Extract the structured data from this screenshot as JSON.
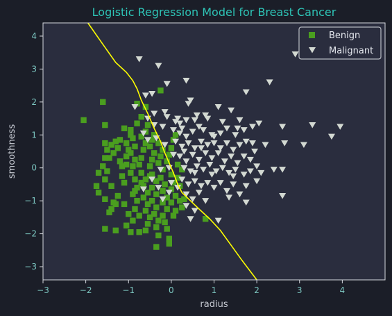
{
  "colors": {
    "figure_bg": "#1b1e28",
    "plot_bg": "#2a2d3e",
    "spine": "#d7dae0",
    "tick_label": "#7cc6c0",
    "axis_label": "#c8ccd4",
    "title": "#2ec4b6",
    "benign": "#4a9e1f",
    "malignant": "#d3d9d2",
    "boundary": "#ffff00",
    "legend_bg": "#2a2d3e",
    "legend_border": "#d7dae0",
    "legend_text": "#e6e9ef"
  },
  "chart_data": {
    "type": "scatter",
    "title": "Logistic Regression Model for Breast Cancer",
    "xlabel": "radius",
    "ylabel": "smoothness",
    "xlim": [
      -3,
      5
    ],
    "ylim": [
      -3.4,
      4.4
    ],
    "xticks": [
      -3,
      -2,
      -1,
      0,
      1,
      2,
      3,
      4
    ],
    "yticks": [
      -3,
      -2,
      -1,
      0,
      1,
      2,
      3,
      4
    ],
    "grid": false,
    "legend": {
      "position": "top-right",
      "entries": [
        "Benign",
        "Malignant"
      ]
    },
    "series": [
      {
        "name": "Benign",
        "marker": "square",
        "points": [
          [
            -2.05,
            1.45
          ],
          [
            -1.6,
            2.0
          ],
          [
            -1.55,
            1.3
          ],
          [
            -1.55,
            0.75
          ],
          [
            -1.4,
            0.7
          ],
          [
            -1.5,
            0.55
          ],
          [
            -1.3,
            0.8
          ],
          [
            -1.2,
            0.85
          ],
          [
            -1.25,
            0.6
          ],
          [
            -1.35,
            0.45
          ],
          [
            -1.55,
            0.3
          ],
          [
            -1.45,
            0.3
          ],
          [
            -1.6,
            0.05
          ],
          [
            -1.7,
            -0.15
          ],
          [
            -1.5,
            -0.1
          ],
          [
            -1.55,
            -0.35
          ],
          [
            -1.4,
            -0.55
          ],
          [
            -1.7,
            -0.75
          ],
          [
            -1.55,
            -0.95
          ],
          [
            -1.35,
            -1.05
          ],
          [
            -1.4,
            -1.25
          ],
          [
            -1.45,
            -1.35
          ],
          [
            -1.55,
            -1.85
          ],
          [
            -1.3,
            -1.9
          ],
          [
            -1.2,
            0.2
          ],
          [
            -1.15,
            -0.25
          ],
          [
            -1.1,
            -0.45
          ],
          [
            -1.25,
            -0.85
          ],
          [
            -1.1,
            -1.1
          ],
          [
            -1.15,
            0.05
          ],
          [
            -1.05,
            0.35
          ],
          [
            -1.0,
            0.55
          ],
          [
            -1.05,
            0.75
          ],
          [
            -0.95,
            1.0
          ],
          [
            -1.1,
            1.2
          ],
          [
            -0.95,
            1.15
          ],
          [
            -0.9,
            0.9
          ],
          [
            -0.85,
            0.65
          ],
          [
            -0.95,
            0.45
          ],
          [
            -0.85,
            0.25
          ],
          [
            -0.9,
            0.05
          ],
          [
            -0.95,
            -0.15
          ],
          [
            -0.85,
            -0.35
          ],
          [
            -0.8,
            -0.6
          ],
          [
            -0.9,
            -0.8
          ],
          [
            -0.8,
            -1.0
          ],
          [
            -0.85,
            -1.25
          ],
          [
            -0.75,
            -1.45
          ],
          [
            -0.9,
            -1.6
          ],
          [
            -1.05,
            -1.75
          ],
          [
            -0.75,
            -1.95
          ],
          [
            -0.8,
            1.35
          ],
          [
            -0.7,
            1.55
          ],
          [
            -0.8,
            1.95
          ],
          [
            -0.6,
            1.85
          ],
          [
            -0.75,
            0.1
          ],
          [
            -0.7,
            0.3
          ],
          [
            -0.65,
            0.55
          ],
          [
            -0.6,
            0.75
          ],
          [
            -0.7,
            0.95
          ],
          [
            -0.6,
            1.1
          ],
          [
            -0.55,
            1.3
          ],
          [
            -0.7,
            -0.15
          ],
          [
            -0.6,
            -0.35
          ],
          [
            -0.65,
            -0.55
          ],
          [
            -0.55,
            -0.75
          ],
          [
            -0.65,
            -0.9
          ],
          [
            -0.55,
            -1.1
          ],
          [
            -0.6,
            -1.3
          ],
          [
            -0.5,
            -1.5
          ],
          [
            -0.55,
            -1.7
          ],
          [
            -0.6,
            -1.9
          ],
          [
            -0.5,
            0.05
          ],
          [
            -0.45,
            0.25
          ],
          [
            -0.4,
            0.45
          ],
          [
            -0.5,
            0.65
          ],
          [
            -0.45,
            0.85
          ],
          [
            -0.4,
            1.0
          ],
          [
            -0.45,
            -0.2
          ],
          [
            -0.35,
            -0.4
          ],
          [
            -0.45,
            -0.6
          ],
          [
            -0.35,
            -0.8
          ],
          [
            -0.45,
            -1.0
          ],
          [
            -0.35,
            -1.2
          ],
          [
            -0.4,
            -1.4
          ],
          [
            -0.3,
            -1.6
          ],
          [
            -0.35,
            -1.8
          ],
          [
            -0.3,
            -2.05
          ],
          [
            -0.35,
            -2.4
          ],
          [
            -0.25,
            2.35
          ],
          [
            -0.3,
            0.15
          ],
          [
            -0.25,
            0.35
          ],
          [
            -0.2,
            0.55
          ],
          [
            -0.3,
            0.75
          ],
          [
            -0.2,
            -0.05
          ],
          [
            -0.25,
            -0.3
          ],
          [
            -0.15,
            -0.5
          ],
          [
            -0.2,
            -0.7
          ],
          [
            -0.1,
            -0.9
          ],
          [
            -0.2,
            -1.05
          ],
          [
            -0.1,
            -1.25
          ],
          [
            -0.2,
            -1.45
          ],
          [
            -0.15,
            -1.65
          ],
          [
            -0.1,
            -1.85
          ],
          [
            -0.05,
            -2.15
          ],
          [
            -0.05,
            -2.3
          ],
          [
            -0.1,
            0.2
          ],
          [
            -0.05,
            0.4
          ],
          [
            0.0,
            0.6
          ],
          [
            0.05,
            0.85
          ],
          [
            0.1,
            1.0
          ],
          [
            0.0,
            -0.2
          ],
          [
            0.05,
            -0.45
          ],
          [
            0.0,
            -0.65
          ],
          [
            0.1,
            -0.85
          ],
          [
            0.0,
            -1.05
          ],
          [
            0.1,
            -1.3
          ],
          [
            0.05,
            -1.45
          ],
          [
            0.15,
            -0.3
          ],
          [
            0.2,
            -0.55
          ],
          [
            0.2,
            -1.0
          ],
          [
            0.25,
            -1.2
          ],
          [
            0.3,
            -0.95
          ],
          [
            0.15,
            0.1
          ],
          [
            0.25,
            -0.05
          ],
          [
            -1.3,
            -1.1
          ],
          [
            -1.75,
            -0.55
          ],
          [
            -1.0,
            -1.4
          ],
          [
            -0.95,
            -1.95
          ],
          [
            0.8,
            -1.55
          ],
          [
            -0.7,
            -0.45
          ],
          [
            -0.5,
            -0.25
          ],
          [
            -1.05,
            0.1
          ],
          [
            -0.85,
            -0.7
          ]
        ]
      },
      {
        "name": "Malignant",
        "marker": "triangle-down",
        "points": [
          [
            -0.75,
            3.3
          ],
          [
            -0.3,
            3.1
          ],
          [
            -0.1,
            2.55
          ],
          [
            0.35,
            2.65
          ],
          [
            0.45,
            2.05
          ],
          [
            0.4,
            1.95
          ],
          [
            -0.45,
            2.25
          ],
          [
            -0.6,
            2.2
          ],
          [
            -0.85,
            1.85
          ],
          [
            -0.4,
            1.65
          ],
          [
            -0.1,
            1.55
          ],
          [
            -0.15,
            1.7
          ],
          [
            0.15,
            1.5
          ],
          [
            0.2,
            1.35
          ],
          [
            0.35,
            1.45
          ],
          [
            0.55,
            1.45
          ],
          [
            0.8,
            1.6
          ],
          [
            0.85,
            1.5
          ],
          [
            1.1,
            1.85
          ],
          [
            1.4,
            1.75
          ],
          [
            1.6,
            1.45
          ],
          [
            1.75,
            2.3
          ],
          [
            2.3,
            2.6
          ],
          [
            2.9,
            3.45
          ],
          [
            0.05,
            1.15
          ],
          [
            0.2,
            1.05
          ],
          [
            0.35,
            0.95
          ],
          [
            0.5,
            1.1
          ],
          [
            0.65,
            1.25
          ],
          [
            0.75,
            1.15
          ],
          [
            0.95,
            1.0
          ],
          [
            1.15,
            1.05
          ],
          [
            1.3,
            1.2
          ],
          [
            1.5,
            1.0
          ],
          [
            1.7,
            1.15
          ],
          [
            1.9,
            1.25
          ],
          [
            2.05,
            1.35
          ],
          [
            2.6,
            1.25
          ],
          [
            3.3,
            1.3
          ],
          [
            3.95,
            1.25
          ],
          [
            0.1,
            0.8
          ],
          [
            0.25,
            0.65
          ],
          [
            0.4,
            0.75
          ],
          [
            0.55,
            0.6
          ],
          [
            0.7,
            0.8
          ],
          [
            0.85,
            0.7
          ],
          [
            1.0,
            0.75
          ],
          [
            1.15,
            0.6
          ],
          [
            1.3,
            0.75
          ],
          [
            1.45,
            0.55
          ],
          [
            1.6,
            0.7
          ],
          [
            1.75,
            0.8
          ],
          [
            1.95,
            0.5
          ],
          [
            2.2,
            0.7
          ],
          [
            2.65,
            0.75
          ],
          [
            3.1,
            0.7
          ],
          [
            3.75,
            0.95
          ],
          [
            0.2,
            0.35
          ],
          [
            0.35,
            0.2
          ],
          [
            0.5,
            0.4
          ],
          [
            0.65,
            0.25
          ],
          [
            0.8,
            0.45
          ],
          [
            0.95,
            0.3
          ],
          [
            1.1,
            0.45
          ],
          [
            1.25,
            0.2
          ],
          [
            1.4,
            0.35
          ],
          [
            1.55,
            0.15
          ],
          [
            1.7,
            0.35
          ],
          [
            1.85,
            0.25
          ],
          [
            2.0,
            0.05
          ],
          [
            0.3,
            0.0
          ],
          [
            0.45,
            -0.1
          ],
          [
            0.6,
            0.05
          ],
          [
            0.75,
            -0.05
          ],
          [
            0.9,
            0.1
          ],
          [
            1.05,
            -0.1
          ],
          [
            1.2,
            0.0
          ],
          [
            1.35,
            -0.15
          ],
          [
            1.5,
            -0.05
          ],
          [
            1.7,
            -0.2
          ],
          [
            1.85,
            -0.1
          ],
          [
            2.1,
            -0.15
          ],
          [
            2.6,
            -0.05
          ],
          [
            0.25,
            -0.35
          ],
          [
            0.4,
            -0.5
          ],
          [
            0.55,
            -0.4
          ],
          [
            0.7,
            -0.55
          ],
          [
            0.85,
            -0.45
          ],
          [
            1.0,
            -0.6
          ],
          [
            1.15,
            -0.45
          ],
          [
            1.3,
            -0.7
          ],
          [
            1.45,
            -0.5
          ],
          [
            1.6,
            -0.8
          ],
          [
            1.75,
            -0.55
          ],
          [
            0.35,
            -0.8
          ],
          [
            0.5,
            -0.95
          ],
          [
            0.65,
            -0.75
          ],
          [
            0.8,
            -1.0
          ],
          [
            1.35,
            -0.9
          ],
          [
            1.75,
            -1.05
          ],
          [
            0.35,
            -1.15
          ],
          [
            0.55,
            -1.3
          ],
          [
            0.45,
            -1.55
          ],
          [
            1.1,
            -1.6
          ],
          [
            2.6,
            -0.85
          ],
          [
            -0.4,
            1.3
          ],
          [
            -0.55,
            1.5
          ],
          [
            -0.65,
            1.05
          ],
          [
            -0.55,
            0.85
          ],
          [
            -0.2,
            1.25
          ],
          [
            0.05,
            0.4
          ],
          [
            -0.05,
            0.0
          ],
          [
            -0.25,
            -0.05
          ],
          [
            -0.15,
            0.7
          ],
          [
            -0.35,
            0.9
          ],
          [
            0.0,
            -0.45
          ],
          [
            -0.05,
            -0.75
          ],
          [
            0.15,
            -0.6
          ],
          [
            -0.3,
            -0.6
          ],
          [
            -0.2,
            -0.95
          ],
          [
            -0.45,
            -0.35
          ],
          [
            -0.65,
            -0.65
          ],
          [
            0.1,
            1.4
          ],
          [
            0.3,
            0.5
          ],
          [
            1.2,
            1.4
          ],
          [
            1.0,
            0.95
          ],
          [
            0.6,
            1.6
          ],
          [
            1.55,
            1.2
          ],
          [
            1.9,
            0.75
          ],
          [
            2.4,
            -0.05
          ],
          [
            1.45,
            -0.25
          ],
          [
            0.95,
            -0.2
          ],
          [
            0.55,
            -0.15
          ],
          [
            2.0,
            -0.4
          ],
          [
            0.25,
            1.2
          ],
          [
            0.7,
            0.6
          ]
        ]
      },
      {
        "name": "",
        "marker": "line",
        "points": [
          [
            -1.95,
            4.4
          ],
          [
            -1.6,
            3.75
          ],
          [
            -1.3,
            3.2
          ],
          [
            -1.05,
            2.9
          ],
          [
            -0.9,
            2.65
          ],
          [
            -0.8,
            2.4
          ],
          [
            -0.7,
            2.05
          ],
          [
            -0.55,
            1.65
          ],
          [
            -0.4,
            1.2
          ],
          [
            -0.25,
            0.8
          ],
          [
            -0.15,
            0.45
          ],
          [
            -0.05,
            0.15
          ],
          [
            0.05,
            -0.15
          ],
          [
            0.15,
            -0.5
          ],
          [
            0.25,
            -0.75
          ],
          [
            0.45,
            -1.0
          ],
          [
            0.65,
            -1.25
          ],
          [
            0.9,
            -1.55
          ],
          [
            1.15,
            -1.9
          ],
          [
            1.4,
            -2.35
          ],
          [
            1.65,
            -2.8
          ],
          [
            2.0,
            -3.4
          ]
        ]
      }
    ]
  }
}
